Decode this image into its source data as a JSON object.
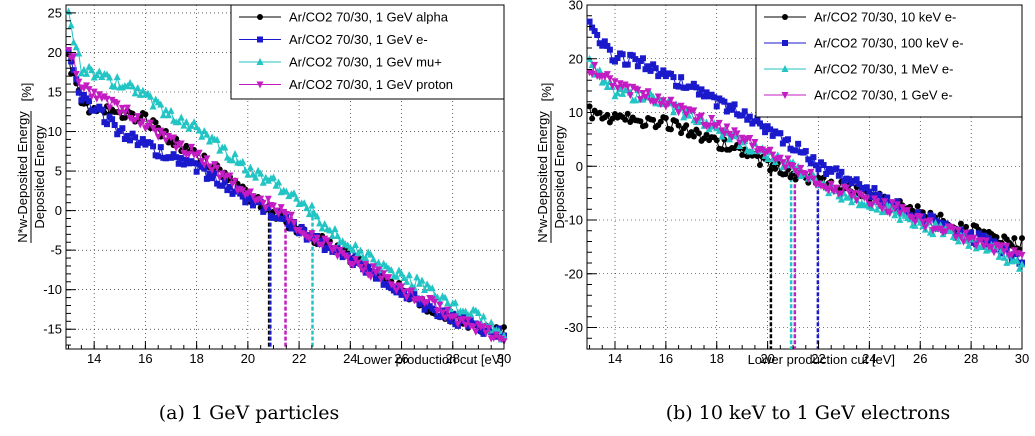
{
  "chart_data": [
    {
      "type": "line",
      "caption": "(a) 1 GeV particles",
      "xlabel": "Lower production cut [eV]",
      "ylabel_numerator": "N*w-Deposited Energy",
      "ylabel_denominator": "Deposited Energy",
      "ylabel_unit": "[%]",
      "xlim": [
        12.9,
        30
      ],
      "ylim": [
        -17.5,
        26
      ],
      "xticks": [
        14,
        16,
        18,
        20,
        22,
        24,
        26,
        28,
        30
      ],
      "yticks": [
        -15,
        -10,
        -5,
        0,
        5,
        10,
        15,
        20,
        25
      ],
      "grid": true,
      "legend": "top-right",
      "series": [
        {
          "name": "Ar/CO2 70/30, 1 GeV alpha",
          "color": "#000000",
          "marker": "circle",
          "cut": 20.9,
          "points": [
            [
              13,
              19
            ],
            [
              13.5,
              14
            ],
            [
              14,
              12.5
            ],
            [
              15,
              12.5
            ],
            [
              16,
              11.5
            ],
            [
              17,
              9
            ],
            [
              18,
              7
            ],
            [
              19,
              4.5
            ],
            [
              20,
              2
            ],
            [
              20.9,
              0
            ],
            [
              22,
              -2.5
            ],
            [
              23,
              -4
            ],
            [
              24,
              -6
            ],
            [
              25,
              -8
            ],
            [
              26,
              -10
            ],
            [
              27,
              -12
            ],
            [
              28,
              -13.5
            ],
            [
              29,
              -14.5
            ],
            [
              30,
              -15.5
            ]
          ]
        },
        {
          "name": "Ar/CO2 70/30, 1 GeV e-",
          "color": "#1a1acc",
          "marker": "square",
          "cut": 20.9,
          "points": [
            [
              13,
              20
            ],
            [
              13.5,
              14.5
            ],
            [
              14,
              13
            ],
            [
              15,
              10
            ],
            [
              16,
              8.5
            ],
            [
              17,
              6.5
            ],
            [
              18,
              5.5
            ],
            [
              19,
              3.5
            ],
            [
              20,
              1.5
            ],
            [
              20.9,
              0
            ],
            [
              22,
              -2.5
            ],
            [
              23,
              -4.5
            ],
            [
              24,
              -6
            ],
            [
              25,
              -8
            ],
            [
              26,
              -10
            ],
            [
              27,
              -12
            ],
            [
              28,
              -13.5
            ],
            [
              29,
              -15
            ],
            [
              30,
              -15.5
            ]
          ]
        },
        {
          "name": "Ar/CO2 70/30, 1 GeV mu+",
          "color": "#22c4c4",
          "marker": "triangle-up",
          "cut": 22.5,
          "points": [
            [
              13,
              24.5
            ],
            [
              13.5,
              18
            ],
            [
              14,
              17.5
            ],
            [
              15,
              16
            ],
            [
              16,
              14.5
            ],
            [
              17,
              12
            ],
            [
              18,
              10.5
            ],
            [
              19,
              8
            ],
            [
              20,
              5
            ],
            [
              21,
              3.5
            ],
            [
              22.5,
              0
            ],
            [
              23,
              -2
            ],
            [
              24,
              -4
            ],
            [
              25,
              -6.5
            ],
            [
              26,
              -8
            ],
            [
              27,
              -10
            ],
            [
              28,
              -12
            ],
            [
              29,
              -13.5
            ],
            [
              30,
              -16
            ]
          ]
        },
        {
          "name": "Ar/CO2 70/30, 1 GeV proton",
          "color": "#c31cc3",
          "marker": "triangle-down",
          "cut": 21.4,
          "points": [
            [
              13,
              21
            ],
            [
              13.5,
              15.5
            ],
            [
              14,
              14.5
            ],
            [
              15,
              13
            ],
            [
              16,
              11
            ],
            [
              17,
              9
            ],
            [
              18,
              7
            ],
            [
              19,
              4.5
            ],
            [
              20,
              2
            ],
            [
              21.4,
              0
            ],
            [
              22,
              -2
            ],
            [
              23,
              -4
            ],
            [
              24,
              -6
            ],
            [
              25,
              -8
            ],
            [
              26,
              -10
            ],
            [
              27,
              -11.5
            ],
            [
              28,
              -13.5
            ],
            [
              29,
              -15
            ],
            [
              30,
              -16.5
            ]
          ]
        }
      ]
    },
    {
      "type": "line",
      "caption": "(b) 10 keV to 1 GeV electrons",
      "xlabel": "Lower production cut [eV]",
      "ylabel_numerator": "N*w-Deposited Energy",
      "ylabel_denominator": "Deposited Energy",
      "ylabel_unit": "[%]",
      "xlim": [
        12.9,
        30
      ],
      "ylim": [
        -34,
        30
      ],
      "xticks": [
        14,
        16,
        18,
        20,
        22,
        24,
        26,
        28,
        30
      ],
      "yticks": [
        -30,
        -20,
        -10,
        0,
        10,
        20,
        30
      ],
      "grid": true,
      "legend": "top-right",
      "series": [
        {
          "name": "Ar/CO2 70/30, 10 keV e-",
          "color": "#000000",
          "marker": "circle",
          "cut": 20.2,
          "points": [
            [
              13,
              10
            ],
            [
              14,
              9
            ],
            [
              15,
              8.5
            ],
            [
              16,
              8
            ],
            [
              17,
              6.5
            ],
            [
              18,
              4.5
            ],
            [
              19,
              2.5
            ],
            [
              20,
              0.5
            ],
            [
              20.2,
              0
            ],
            [
              21,
              -1.5
            ],
            [
              22,
              -2.5
            ],
            [
              23,
              -4
            ],
            [
              24,
              -5.5
            ],
            [
              25,
              -7
            ],
            [
              26,
              -8.5
            ],
            [
              27,
              -10
            ],
            [
              28,
              -11.5
            ],
            [
              29,
              -13
            ],
            [
              30,
              -14.5
            ]
          ]
        },
        {
          "name": "Ar/CO2 70/30, 100 keV e-",
          "color": "#1a1acc",
          "marker": "square",
          "cut": 22,
          "points": [
            [
              13,
              26.5
            ],
            [
              14,
              20
            ],
            [
              15,
              19.5
            ],
            [
              16,
              17
            ],
            [
              17,
              14.5
            ],
            [
              18,
              12
            ],
            [
              19,
              10
            ],
            [
              20,
              7
            ],
            [
              21,
              4
            ],
            [
              22,
              0
            ],
            [
              23,
              -2
            ],
            [
              24,
              -4.5
            ],
            [
              25,
              -7
            ],
            [
              26,
              -9
            ],
            [
              27,
              -11
            ],
            [
              28,
              -13
            ],
            [
              29,
              -15
            ],
            [
              30,
              -17.5
            ]
          ]
        },
        {
          "name": "Ar/CO2 70/30, 1 MeV e-",
          "color": "#22c4c4",
          "marker": "triangle-up",
          "cut": 20.9,
          "points": [
            [
              13,
              19
            ],
            [
              14,
              14
            ],
            [
              15,
              13
            ],
            [
              16,
              11.5
            ],
            [
              17,
              9.5
            ],
            [
              18,
              7
            ],
            [
              19,
              4.5
            ],
            [
              20,
              2
            ],
            [
              20.9,
              0
            ],
            [
              22,
              -3
            ],
            [
              23,
              -5.5
            ],
            [
              24,
              -6.5
            ],
            [
              25,
              -8.5
            ],
            [
              26,
              -10.5
            ],
            [
              27,
              -12.5
            ],
            [
              28,
              -14
            ],
            [
              29,
              -16
            ],
            [
              30,
              -18.5
            ]
          ]
        },
        {
          "name": "Ar/CO2 70/30, 1 GeV e-",
          "color": "#c31cc3",
          "marker": "triangle-down",
          "cut": 21,
          "points": [
            [
              13,
              18.5
            ],
            [
              14,
              15
            ],
            [
              15,
              13.5
            ],
            [
              16,
              12
            ],
            [
              17,
              10
            ],
            [
              18,
              7.5
            ],
            [
              19,
              5
            ],
            [
              20,
              2.5
            ],
            [
              21,
              0
            ],
            [
              22,
              -2.5
            ],
            [
              23,
              -4.5
            ],
            [
              24,
              -6
            ],
            [
              25,
              -8
            ],
            [
              26,
              -10
            ],
            [
              27,
              -12
            ],
            [
              28,
              -13.5
            ],
            [
              29,
              -15.5
            ],
            [
              30,
              -16.5
            ]
          ]
        }
      ]
    }
  ]
}
